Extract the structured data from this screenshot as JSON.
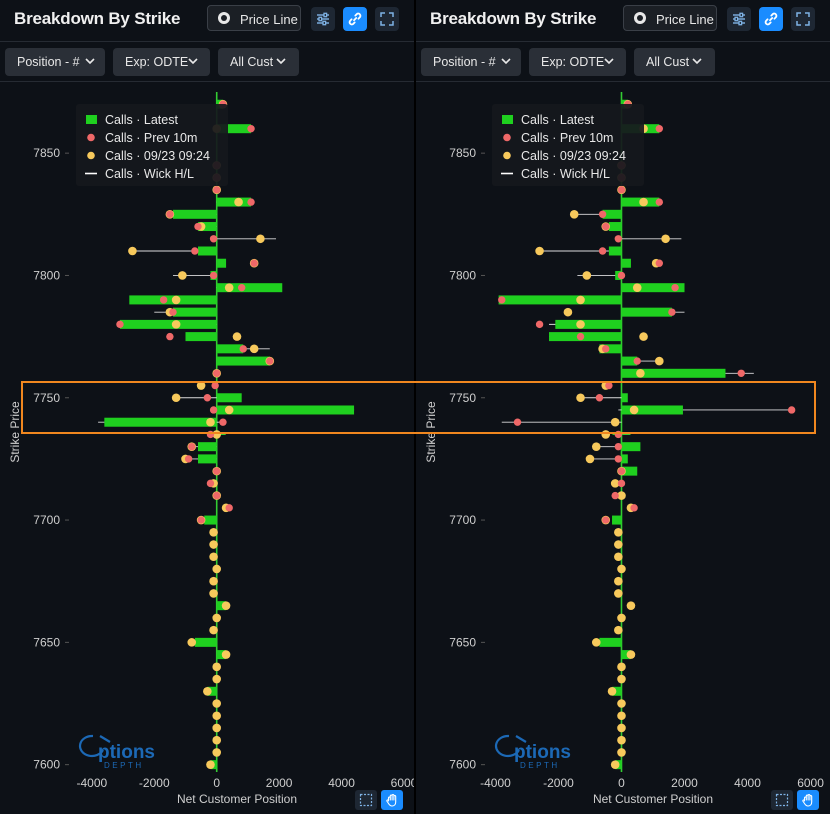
{
  "colors": {
    "background": "#0d1117",
    "bar": "#1fd01f",
    "prev": "#ef6868",
    "snapshot": "#f7c95c",
    "wick": "#ffffff",
    "price_line": "#33cc33",
    "highlight": "#f0871f",
    "accent": "#1a8cff"
  },
  "panels": [
    {
      "title": "Breakdown By Strike",
      "price_line_label": "Price Line",
      "icons": [
        "sliders-icon",
        "link-icon",
        "expand-icon"
      ],
      "filters": [
        {
          "label": "Position - #"
        },
        {
          "label": "Exp: ODTE"
        },
        {
          "label": "All Cust"
        }
      ],
      "watermark": {
        "brand": "ptions",
        "sub": "DEPTH"
      }
    },
    {
      "title": "Breakdown By Strike",
      "price_line_label": "Price Line",
      "icons": [
        "sliders-icon",
        "link-icon",
        "expand-icon"
      ],
      "filters": [
        {
          "label": "Position - #"
        },
        {
          "label": "Exp: ODTE"
        },
        {
          "label": "All Cust"
        }
      ],
      "watermark": {
        "brand": "ptions",
        "sub": "DEPTH"
      }
    }
  ],
  "chart_data": [
    {
      "type": "bar",
      "orientation": "horizontal",
      "xlabel": "Net Customer Position",
      "ylabel": "Strike Price",
      "xlim": [
        -4700,
        6000
      ],
      "xticks": [
        -4000,
        -2000,
        0,
        2000,
        4000,
        6000
      ],
      "ylim": [
        7597,
        7875
      ],
      "yticks": [
        7600,
        7650,
        7700,
        7750,
        7800,
        7850
      ],
      "price_line_y": 7735,
      "legend": {
        "placement": "top-left",
        "entries": [
          {
            "label": "Calls · Latest",
            "kind": "bar"
          },
          {
            "label": "Calls · Prev 10m",
            "kind": "prev"
          },
          {
            "label": "Calls · 09/23 09:24",
            "kind": "snapshot"
          },
          {
            "label": "Calls · Wick H/L",
            "kind": "wick"
          }
        ]
      },
      "series": [
        {
          "name": "Calls · Latest",
          "strikes": [
            7870,
            7865,
            7860,
            7855,
            7850,
            7845,
            7840,
            7835,
            7830,
            7825,
            7820,
            7815,
            7810,
            7805,
            7800,
            7795,
            7790,
            7785,
            7780,
            7775,
            7770,
            7765,
            7760,
            7755,
            7750,
            7745,
            7740,
            7735,
            7730,
            7725,
            7720,
            7715,
            7710,
            7705,
            7700,
            7695,
            7690,
            7685,
            7680,
            7675,
            7670,
            7665,
            7660,
            7655,
            7650,
            7645,
            7640,
            7635,
            7630,
            7625,
            7620,
            7615,
            7610,
            7605,
            7600
          ],
          "values": [
            200,
            0,
            1100,
            0,
            0,
            0,
            0,
            0,
            1100,
            -1400,
            -600,
            0,
            -600,
            300,
            -200,
            2100,
            -2800,
            -1400,
            -3100,
            -1000,
            850,
            1700,
            0,
            0,
            800,
            4400,
            -3600,
            0,
            -600,
            -600,
            0,
            0,
            0,
            0,
            -400,
            0,
            0,
            0,
            0,
            0,
            0,
            300,
            0,
            0,
            -700,
            300,
            0,
            0,
            -300,
            0,
            0,
            0,
            0,
            0,
            -200
          ]
        },
        {
          "name": "Calls · Prev 10m",
          "strikes": [
            7870,
            7860,
            7845,
            7840,
            7835,
            7830,
            7825,
            7820,
            7815,
            7810,
            7805,
            7800,
            7795,
            7790,
            7785,
            7780,
            7775,
            7770,
            7765,
            7760,
            7755,
            7750,
            7745,
            7740,
            7735,
            7730,
            7725,
            7720,
            7715,
            7710,
            7705,
            7700
          ],
          "values": [
            200,
            1100,
            0,
            0,
            0,
            1100,
            -1500,
            -600,
            -100,
            -700,
            1200,
            -100,
            800,
            -1700,
            -1400,
            -3100,
            -1500,
            850,
            1700,
            0,
            -50,
            -300,
            -100,
            200,
            -200,
            -800,
            -900,
            0,
            -200,
            0,
            400,
            -500
          ]
        },
        {
          "name": "Calls · 09/23 09:24",
          "strikes": [
            7870,
            7860,
            7845,
            7840,
            7835,
            7830,
            7825,
            7820,
            7815,
            7810,
            7805,
            7800,
            7795,
            7790,
            7785,
            7780,
            7775,
            7770,
            7765,
            7760,
            7755,
            7750,
            7745,
            7740,
            7735,
            7730,
            7725,
            7720,
            7715,
            7710,
            7705,
            7700,
            7695,
            7690,
            7685,
            7680,
            7675,
            7670,
            7665,
            7660,
            7655,
            7650,
            7645,
            7640,
            7635,
            7630,
            7625,
            7620,
            7615,
            7610,
            7605,
            7600
          ],
          "values": [
            200,
            0,
            0,
            0,
            0,
            700,
            -1500,
            -500,
            1400,
            -2700,
            1200,
            -1100,
            400,
            -1300,
            -1500,
            -1300,
            650,
            1200,
            1700,
            0,
            -500,
            -1300,
            400,
            -200,
            0,
            -800,
            -1000,
            0,
            -100,
            0,
            300,
            -500,
            -100,
            -100,
            -100,
            0,
            -100,
            -100,
            300,
            0,
            -100,
            -800,
            300,
            0,
            0,
            -300,
            0,
            0,
            0,
            0,
            0,
            -200
          ]
        },
        {
          "name": "Calls · Wick H/L",
          "strikes": [
            7860,
            7830,
            7825,
            7820,
            7815,
            7810,
            7800,
            7795,
            7785,
            7780,
            7770,
            7765,
            7750,
            7745,
            7740,
            7735,
            7730,
            7725
          ],
          "low": [
            1100,
            0,
            -1500,
            -600,
            -100,
            -2700,
            -1400,
            0,
            -2000,
            -3200,
            800,
            1700,
            -1300,
            -100,
            -3800,
            -200,
            -800,
            -1000
          ],
          "high": [
            1200,
            1100,
            0,
            0,
            1900,
            -700,
            0,
            800,
            -1300,
            0,
            1700,
            1800,
            0,
            4400,
            200,
            0,
            0,
            0
          ]
        }
      ]
    },
    {
      "type": "bar",
      "orientation": "horizontal",
      "xlabel": "Net Customer Position",
      "ylabel": "Strike Price",
      "xlim": [
        -4300,
        6300
      ],
      "xticks": [
        -4000,
        -2000,
        0,
        2000,
        4000,
        6000
      ],
      "ylim": [
        7597,
        7875
      ],
      "yticks": [
        7600,
        7650,
        7700,
        7750,
        7800,
        7850
      ],
      "price_line_y": 7735,
      "legend": {
        "placement": "top-left",
        "entries": [
          {
            "label": "Calls · Latest",
            "kind": "bar"
          },
          {
            "label": "Calls · Prev 10m",
            "kind": "prev"
          },
          {
            "label": "Calls · 09/23 09:24",
            "kind": "snapshot"
          },
          {
            "label": "Calls · Wick H/L",
            "kind": "wick"
          }
        ]
      },
      "series": [
        {
          "name": "Calls · Latest",
          "strikes": [
            7870,
            7865,
            7860,
            7855,
            7850,
            7845,
            7840,
            7835,
            7830,
            7825,
            7820,
            7815,
            7810,
            7805,
            7800,
            7795,
            7790,
            7785,
            7780,
            7775,
            7770,
            7765,
            7760,
            7755,
            7750,
            7745,
            7740,
            7735,
            7730,
            7725,
            7720,
            7715,
            7710,
            7705,
            7700,
            7695,
            7690,
            7685,
            7680,
            7675,
            7670,
            7665,
            7660,
            7655,
            7650,
            7645,
            7640,
            7635,
            7630,
            7625,
            7620,
            7615,
            7610,
            7605,
            7600
          ],
          "values": [
            200,
            0,
            1200,
            0,
            0,
            0,
            0,
            0,
            1200,
            -600,
            -400,
            0,
            -400,
            300,
            -200,
            2000,
            -3900,
            1600,
            -2100,
            -2300,
            -700,
            500,
            3300,
            0,
            200,
            1950,
            0,
            0,
            600,
            200,
            500,
            0,
            0,
            0,
            -300,
            0,
            0,
            0,
            0,
            0,
            0,
            0,
            0,
            0,
            -700,
            300,
            0,
            0,
            -300,
            0,
            0,
            0,
            0,
            0,
            -200
          ]
        },
        {
          "name": "Calls · Prev 10m",
          "strikes": [
            7870,
            7860,
            7845,
            7840,
            7835,
            7830,
            7825,
            7820,
            7815,
            7810,
            7805,
            7800,
            7795,
            7790,
            7785,
            7780,
            7775,
            7770,
            7765,
            7760,
            7755,
            7750,
            7745,
            7740,
            7735,
            7730,
            7725,
            7720,
            7715,
            7710,
            7705,
            7700
          ],
          "values": [
            200,
            1200,
            0,
            0,
            0,
            1200,
            -600,
            -500,
            -100,
            -600,
            1200,
            0,
            1700,
            -3800,
            1600,
            -2600,
            -1300,
            -500,
            500,
            3800,
            -400,
            -700,
            5400,
            -3300,
            -100,
            -100,
            -100,
            0,
            0,
            -200,
            400,
            -500
          ]
        },
        {
          "name": "Calls · 09/23 09:24",
          "strikes": [
            7870,
            7860,
            7845,
            7840,
            7835,
            7830,
            7825,
            7820,
            7815,
            7810,
            7805,
            7800,
            7795,
            7790,
            7785,
            7780,
            7775,
            7770,
            7765,
            7760,
            7755,
            7750,
            7745,
            7740,
            7735,
            7730,
            7725,
            7720,
            7715,
            7710,
            7705,
            7700,
            7695,
            7690,
            7685,
            7680,
            7675,
            7670,
            7665,
            7660,
            7655,
            7650,
            7645,
            7640,
            7635,
            7630,
            7625,
            7620,
            7615,
            7610,
            7605,
            7600
          ],
          "values": [
            200,
            700,
            0,
            0,
            0,
            700,
            -1500,
            -500,
            1400,
            -2600,
            1100,
            -1100,
            500,
            -1300,
            -1700,
            -1300,
            700,
            -600,
            1200,
            600,
            -500,
            -1300,
            400,
            -200,
            -500,
            -800,
            -1000,
            0,
            -200,
            0,
            300,
            -500,
            -100,
            -100,
            -100,
            0,
            -100,
            -100,
            300,
            0,
            -100,
            -800,
            300,
            0,
            0,
            -300,
            0,
            0,
            0,
            0,
            0,
            -200
          ]
        },
        {
          "name": "Calls · Wick H/L",
          "strikes": [
            7860,
            7830,
            7825,
            7820,
            7815,
            7810,
            7800,
            7795,
            7790,
            7785,
            7780,
            7775,
            7770,
            7765,
            7760,
            7750,
            7745,
            7740,
            7735,
            7730,
            7725
          ],
          "low": [
            1200,
            0,
            -1500,
            -600,
            -100,
            -2600,
            -1400,
            0,
            -3900,
            0,
            -2300,
            -2300,
            -700,
            0,
            3300,
            -1300,
            -100,
            -3800,
            -200,
            -800,
            -1000
          ],
          "high": [
            1200,
            1200,
            0,
            0,
            1900,
            -400,
            0,
            1700,
            0,
            2000,
            0,
            0,
            0,
            1200,
            4200,
            0,
            5400,
            0,
            0,
            0,
            0
          ]
        }
      ]
    }
  ]
}
